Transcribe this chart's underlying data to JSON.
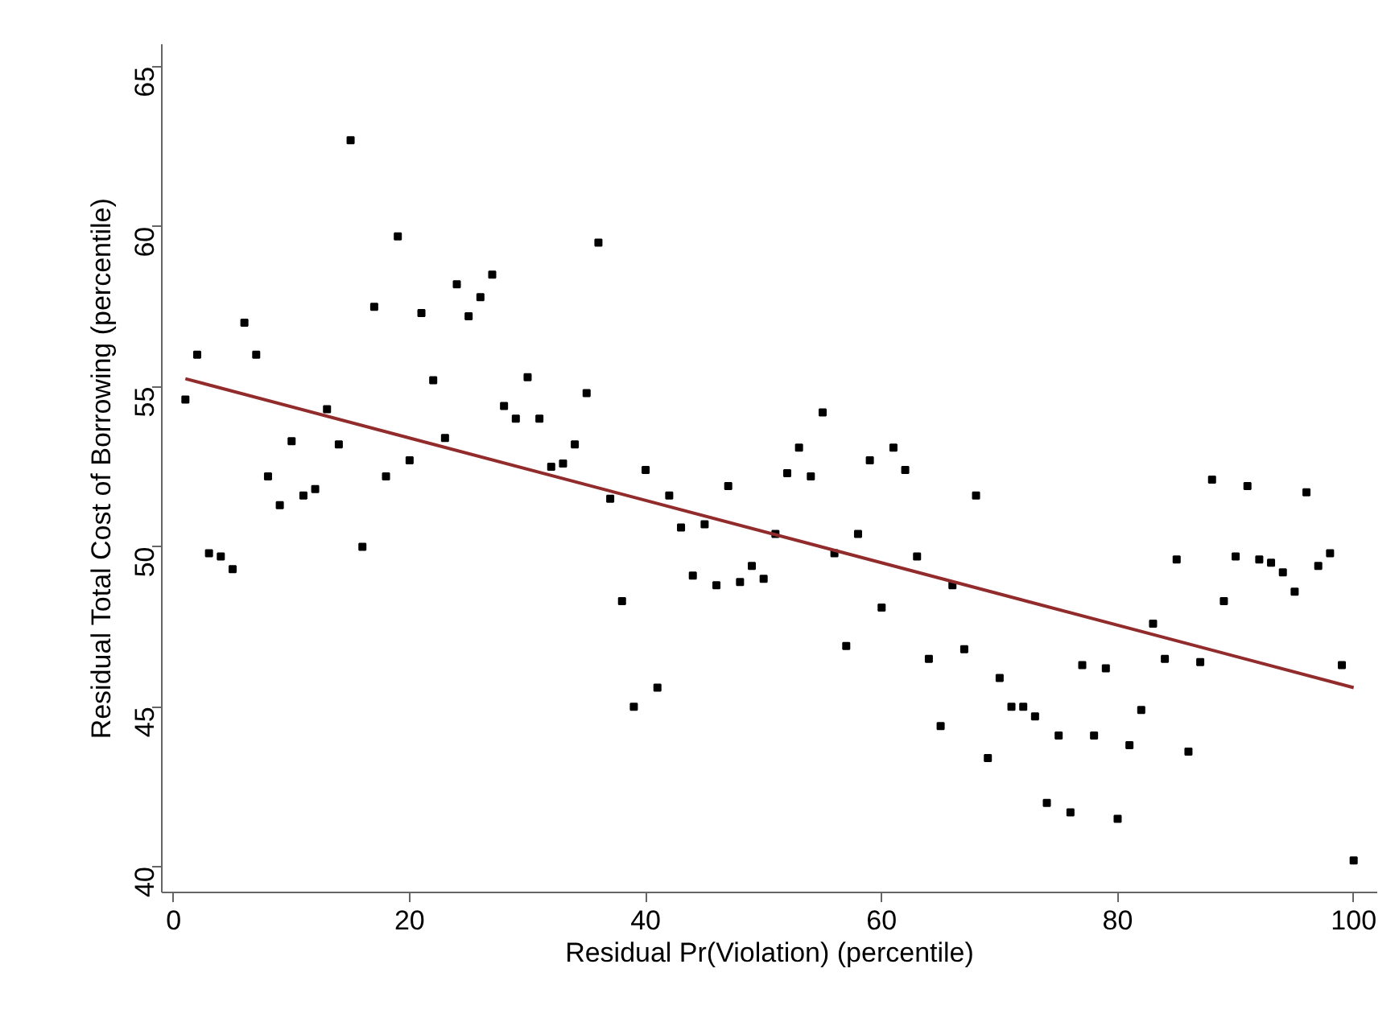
{
  "chart_data": {
    "type": "scatter",
    "xlabel": "Residual Pr(Violation) (percentile)",
    "ylabel": "Residual Total Cost of Borrowing (percentile)",
    "xlim": [
      -1,
      102
    ],
    "ylim": [
      39.2,
      65.7
    ],
    "xticks": [
      0,
      20,
      40,
      60,
      80,
      100
    ],
    "yticks": [
      40,
      45,
      50,
      55,
      60,
      65
    ],
    "marker": "square",
    "x": [
      1,
      2,
      3,
      4,
      5,
      6,
      7,
      8,
      9,
      10,
      11,
      12,
      13,
      14,
      15,
      16,
      17,
      18,
      19,
      20,
      21,
      22,
      23,
      24,
      25,
      26,
      27,
      28,
      29,
      30,
      31,
      32,
      33,
      34,
      35,
      36,
      37,
      38,
      39,
      40,
      41,
      42,
      43,
      44,
      45,
      46,
      47,
      48,
      49,
      50,
      51,
      52,
      53,
      54,
      55,
      56,
      57,
      58,
      59,
      60,
      61,
      62,
      63,
      64,
      65,
      66,
      67,
      68,
      69,
      70,
      71,
      72,
      73,
      74,
      75,
      76,
      77,
      78,
      79,
      80,
      81,
      82,
      83,
      84,
      85,
      86,
      87,
      88,
      89,
      90,
      91,
      92,
      93,
      94,
      95,
      96,
      97,
      98,
      99,
      100
    ],
    "series": [
      {
        "color": "#000000",
        "values": [
          54.6,
          56.0,
          49.8,
          49.7,
          49.3,
          57.0,
          56.0,
          52.2,
          51.3,
          53.3,
          51.6,
          51.8,
          54.3,
          53.2,
          62.7,
          50.0,
          57.5,
          52.2,
          59.7,
          52.7,
          57.3,
          55.2,
          53.4,
          58.2,
          57.2,
          57.8,
          58.5,
          54.4,
          54.0,
          55.3,
          54.0,
          52.5,
          52.6,
          53.2,
          54.8,
          59.5,
          51.5,
          48.3,
          45.0,
          52.4,
          45.6,
          51.6,
          50.6,
          49.1,
          50.7,
          48.8,
          51.9,
          48.9,
          49.4,
          49.0,
          50.4,
          52.3,
          53.1,
          52.2,
          54.2,
          49.8,
          46.9,
          50.4,
          52.7,
          48.1,
          53.1,
          52.4,
          49.7,
          46.5,
          44.4,
          48.8,
          46.8,
          51.6,
          43.4,
          45.9,
          45.0,
          45.0,
          44.7,
          42.0,
          44.1,
          41.7,
          46.3,
          44.1,
          46.2,
          41.5,
          43.8,
          44.9,
          47.6,
          46.5,
          49.6,
          43.6,
          46.4,
          52.1,
          48.3,
          49.7,
          51.9,
          49.6,
          49.5,
          49.2,
          48.6,
          51.7,
          49.4,
          49.8,
          46.3,
          40.2
        ]
      },
      {
        "type": "line",
        "marker": "none",
        "color": "#922b2b",
        "x": [
          1,
          100
        ],
        "values": [
          55.25,
          45.6
        ]
      }
    ]
  }
}
